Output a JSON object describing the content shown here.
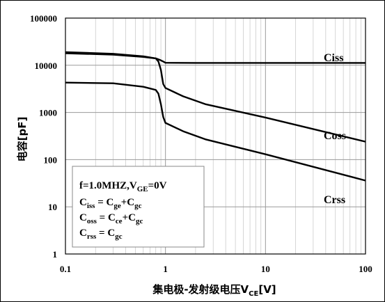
{
  "chart_data": {
    "type": "line",
    "xscale": "log",
    "yscale": "log",
    "xlim": [
      0.1,
      100
    ],
    "ylim": [
      1,
      100000
    ],
    "x_ticks": [
      "0.1",
      "1",
      "10",
      "100"
    ],
    "y_ticks": [
      "1",
      "10",
      "100",
      "1000",
      "10000",
      "100000"
    ],
    "xlabel": {
      "main": "集电极-发射级电压V",
      "sub": "CE",
      "unit": "[V]"
    },
    "ylabel": "电容[pF]",
    "grid": true,
    "series": [
      {
        "name": "Ciss",
        "points": [
          [
            0.1,
            19000
          ],
          [
            0.3,
            17500
          ],
          [
            0.6,
            15500
          ],
          [
            0.8,
            14000
          ],
          [
            0.88,
            13000
          ],
          [
            0.95,
            12000
          ],
          [
            1.0,
            11300
          ],
          [
            2,
            11200
          ],
          [
            10,
            11200
          ],
          [
            100,
            11200
          ]
        ]
      },
      {
        "name": "Coss",
        "points": [
          [
            0.1,
            18000
          ],
          [
            0.3,
            16800
          ],
          [
            0.6,
            15000
          ],
          [
            0.8,
            14000
          ],
          [
            0.85,
            12000
          ],
          [
            0.9,
            8000
          ],
          [
            0.95,
            4000
          ],
          [
            1.0,
            3300
          ],
          [
            1.5,
            2200
          ],
          [
            2.5,
            1500
          ],
          [
            10,
            780
          ],
          [
            100,
            240
          ]
        ]
      },
      {
        "name": "Crss",
        "points": [
          [
            0.1,
            4300
          ],
          [
            0.3,
            4150
          ],
          [
            0.6,
            3500
          ],
          [
            0.8,
            3000
          ],
          [
            0.85,
            2500
          ],
          [
            0.9,
            1500
          ],
          [
            0.95,
            800
          ],
          [
            1.0,
            600
          ],
          [
            1.5,
            400
          ],
          [
            2.5,
            270
          ],
          [
            10,
            130
          ],
          [
            100,
            36
          ]
        ]
      }
    ],
    "legend_box": [
      {
        "main": "f=1.0MHZ,V",
        "sub": "GE",
        "rest": "=0V"
      },
      {
        "main": "C",
        "sub": "iss",
        "rest": " = C",
        "sub2": "ge",
        "rest2": "+C",
        "sub3": "gc"
      },
      {
        "main": "C",
        "sub": "oss",
        "rest": " = C",
        "sub2": "ce",
        "rest2": "+C",
        "sub3": "gc"
      },
      {
        "main": "C",
        "sub": "rss",
        "rest": " = C",
        "sub2": "gc",
        "rest2": "",
        "sub3": ""
      }
    ]
  }
}
